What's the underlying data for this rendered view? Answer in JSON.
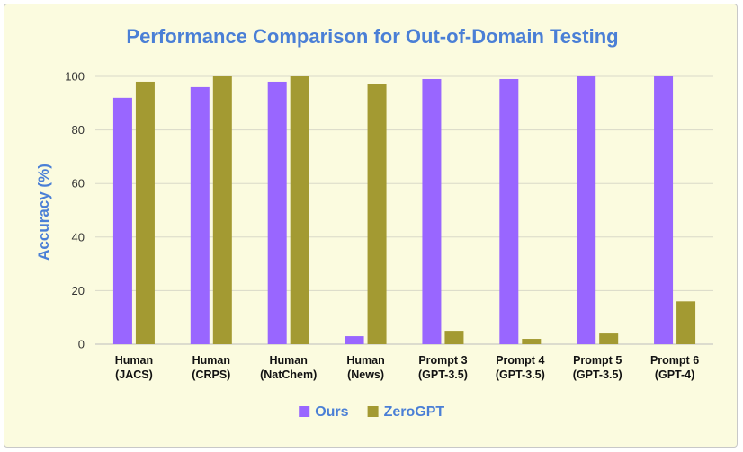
{
  "chart_data": {
    "type": "bar",
    "title": "Performance Comparison for Out-of-Domain Testing",
    "xlabel": "",
    "ylabel": "Accuracy (%)",
    "ylim": [
      0,
      100
    ],
    "yticks": [
      0,
      20,
      40,
      60,
      80,
      100
    ],
    "grid": true,
    "legend_position": "bottom",
    "categories": [
      [
        "Human",
        "(JACS)"
      ],
      [
        "Human",
        "(CRPS)"
      ],
      [
        "Human",
        "(NatChem)"
      ],
      [
        "Human",
        "(News)"
      ],
      [
        "Prompt 3",
        "(GPT-3.5)"
      ],
      [
        "Prompt 4",
        "(GPT-3.5)"
      ],
      [
        "Prompt 5",
        "(GPT-3.5)"
      ],
      [
        "Prompt 6",
        "(GPT-4)"
      ]
    ],
    "series": [
      {
        "name": "Ours",
        "color": "#9966ff",
        "values": [
          92,
          96,
          98,
          3,
          99,
          99,
          100,
          100
        ]
      },
      {
        "name": "ZeroGPT",
        "color": "#a39a32",
        "values": [
          98,
          100,
          100,
          97,
          5,
          2,
          4,
          16
        ]
      }
    ]
  }
}
